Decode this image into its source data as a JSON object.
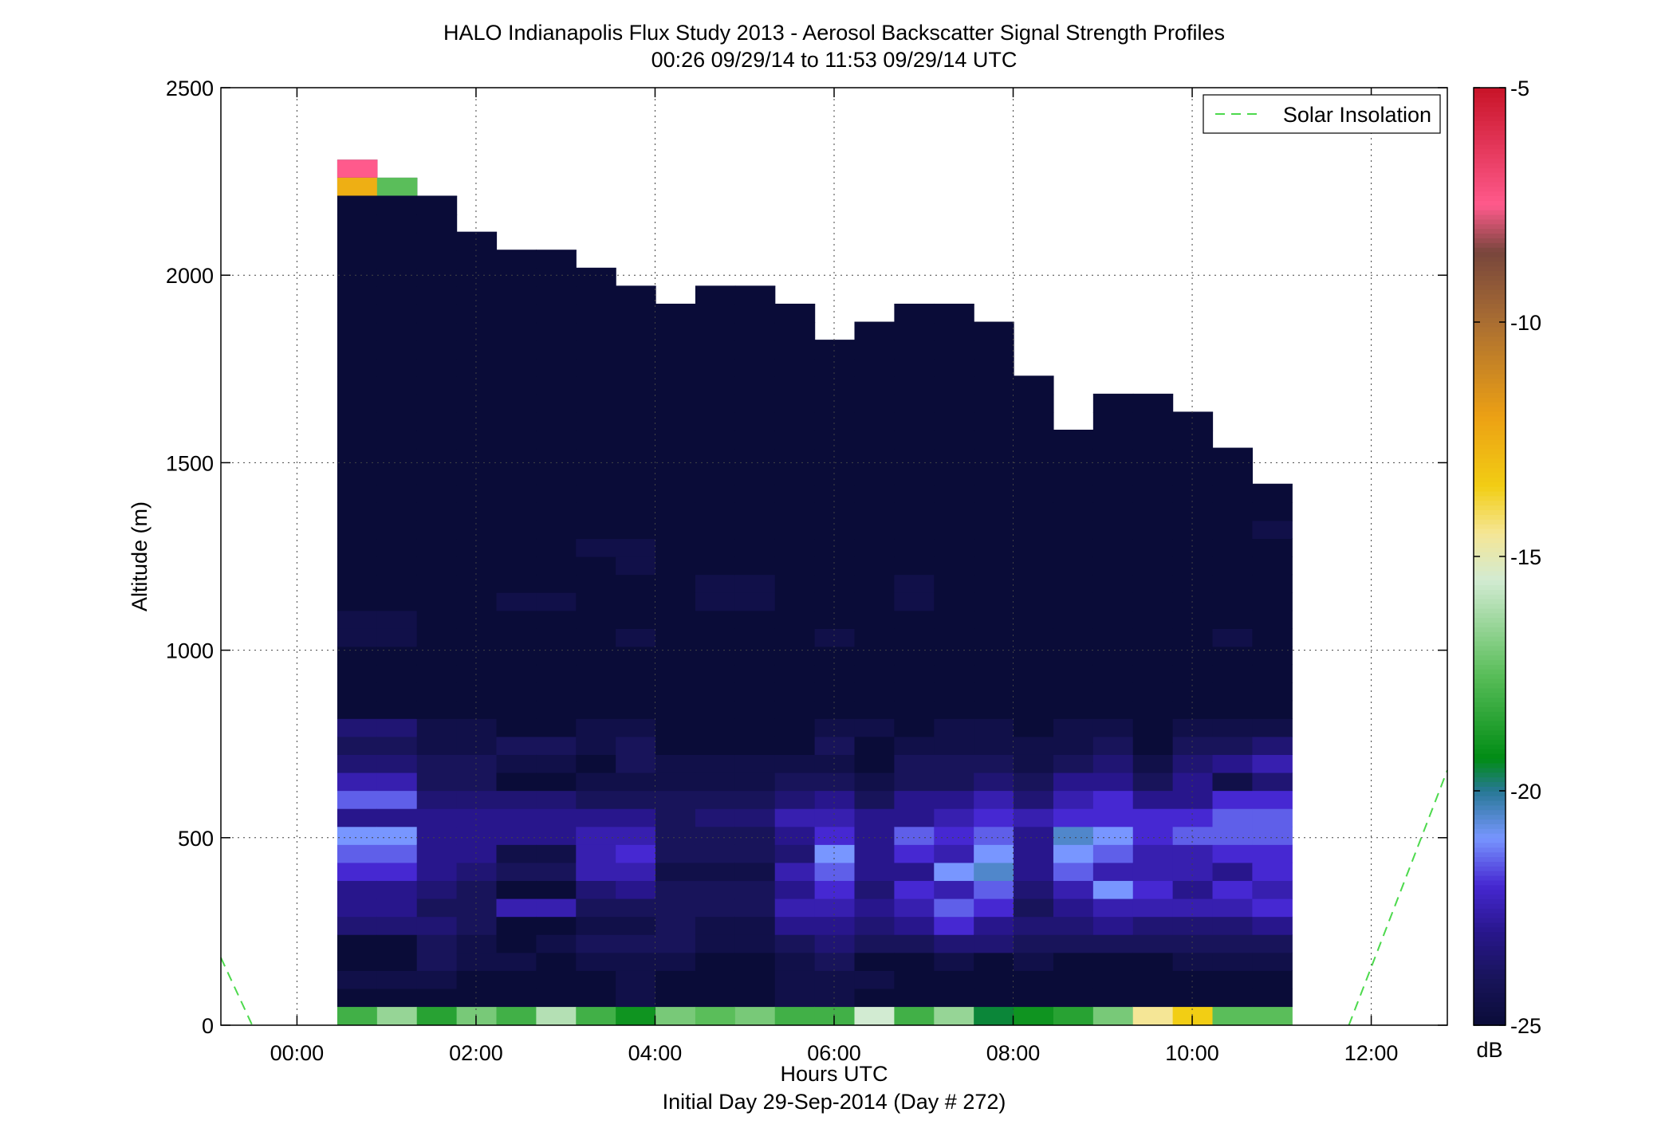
{
  "chart_data": {
    "type": "heatmap",
    "title": "HALO Indianapolis Flux Study 2013 - Aerosol Backscatter Signal Strength Profiles",
    "subtitle": "00:26 09/29/14 to 11:53 09/29/14  UTC",
    "xlabel": "Hours UTC",
    "xlabel2": "Initial Day 29-Sep-2014 (Day # 272)",
    "ylabel": "Altitude (m)",
    "xlim": [
      -0.85,
      12.85
    ],
    "ylim": [
      0,
      2500
    ],
    "x_ticks": [
      0,
      2,
      4,
      6,
      8,
      10,
      12
    ],
    "x_tick_labels": [
      "00:00",
      "02:00",
      "04:00",
      "06:00",
      "08:00",
      "10:00",
      "12:00"
    ],
    "y_ticks": [
      0,
      500,
      1000,
      1500,
      2000,
      2500
    ],
    "y_tick_labels": [
      "0",
      "500",
      "1000",
      "1500",
      "2000",
      "2500"
    ],
    "grid": true,
    "legend": {
      "position": "top-right",
      "entries": [
        "Solar Insolation"
      ]
    },
    "colorbar": {
      "unit": "dB",
      "range": [
        -25,
        -5
      ],
      "ticks": [
        -5,
        -10,
        -15,
        -20,
        -25
      ],
      "tick_labels": [
        "-5",
        "-10",
        "-15",
        "-20",
        "-25"
      ]
    },
    "heatmap": {
      "x_start": 0.45,
      "x_step": 0.4444,
      "y_start": 50,
      "y_step": 48,
      "column_tops": [
        2308,
        2260,
        2212,
        2116,
        2068,
        2068,
        2020,
        1972,
        1924,
        1972,
        1972,
        1924,
        1828,
        1876,
        1924,
        1924,
        1876,
        1732,
        1588,
        1684,
        1684,
        1636,
        1540,
        1444
      ],
      "surface_row_db": [
        -18.0,
        -16.5,
        -18.5,
        -17.0,
        -18.0,
        -16.0,
        -18.0,
        -19.0,
        -17.0,
        -17.5,
        -17.0,
        -18.0,
        -18.0,
        -15.5,
        -18.0,
        -16.5,
        -19.5,
        -19.0,
        -18.5,
        -17.0,
        -14.5,
        -13.5,
        -17.5,
        -17.5
      ],
      "upper_cells": [
        {
          "col": 0,
          "top": 2308,
          "height": 48,
          "db": -7.5
        },
        {
          "col": 0,
          "top": 2260,
          "height": 48,
          "db": -12.5
        },
        {
          "col": 1,
          "top": 2260,
          "height": 48,
          "db": -17.5
        }
      ],
      "profiles": [
        [
          -25,
          -24.5,
          -25,
          -25,
          -23.5,
          -23,
          -23,
          -22,
          -21.5,
          -21,
          -23,
          -21.5,
          -22.5,
          -23.5,
          -24,
          -23.5,
          -25,
          -25,
          -25,
          -25,
          -24.5,
          -24.5,
          -25,
          -25,
          -25,
          -25,
          -25,
          -25,
          -25,
          -25,
          -25,
          -25,
          -25,
          -25,
          -25,
          -25,
          -25,
          -25,
          -25,
          -25,
          -25,
          -25,
          -25
        ],
        [
          -25,
          -24.5,
          -25,
          -25,
          -23.5,
          -23,
          -23,
          -22,
          -21.5,
          -21,
          -23,
          -21.5,
          -22.5,
          -23.5,
          -24,
          -23.5,
          -25,
          -25,
          -25,
          -25,
          -24.5,
          -24.5,
          -25,
          -25,
          -25,
          -25,
          -25,
          -25,
          -25,
          -25,
          -25,
          -25,
          -25,
          -25,
          -25,
          -25,
          -25,
          -25,
          -25,
          -25,
          -25,
          -25,
          -25
        ],
        [
          -25,
          -24.5,
          -24,
          -24,
          -23.5,
          -24,
          -23.5,
          -23,
          -23,
          -23,
          -23,
          -23.5,
          -24,
          -24,
          -24.5,
          -24.5,
          -25,
          -25,
          -25,
          -25,
          -25,
          -25,
          -25,
          -25,
          -25,
          -25,
          -25,
          -25,
          -25,
          -25,
          -25,
          -25,
          -25,
          -25,
          -25,
          -25,
          -25,
          -25,
          -25,
          -25,
          -25,
          -25
        ],
        [
          -25,
          -25,
          -24.5,
          -24.5,
          -24,
          -24,
          -24,
          -23.5,
          -23,
          -23,
          -23,
          -23.5,
          -24,
          -24,
          -24.5,
          -24.5,
          -25,
          -25,
          -25,
          -25,
          -25,
          -25,
          -25,
          -25,
          -25,
          -25,
          -25,
          -25,
          -25,
          -25,
          -25,
          -25,
          -25,
          -25,
          -25,
          -25,
          -25,
          -25,
          -25,
          -25
        ],
        [
          -25,
          -25,
          -24.5,
          -25,
          -25,
          -22.5,
          -25,
          -24,
          -24.5,
          -23,
          -23,
          -23.5,
          -25,
          -24.5,
          -24,
          -25,
          -25,
          -25,
          -25,
          -25,
          -25,
          -25,
          -24.5,
          -25,
          -25,
          -25,
          -25,
          -25,
          -25,
          -25,
          -25,
          -25,
          -25,
          -25,
          -25,
          -25,
          -25,
          -25,
          -25,
          -25,
          -25
        ],
        [
          -25,
          -25,
          -25,
          -24.5,
          -25,
          -22.5,
          -25,
          -24,
          -24.5,
          -23,
          -23,
          -23.5,
          -25,
          -24.5,
          -24,
          -25,
          -25,
          -25,
          -25,
          -25,
          -25,
          -25,
          -24.5,
          -25,
          -25,
          -25,
          -25,
          -25,
          -25,
          -25,
          -25,
          -25,
          -25,
          -25,
          -25,
          -25,
          -25,
          -25,
          -25,
          -25,
          -25
        ],
        [
          -25,
          -25,
          -24.5,
          -24,
          -24.5,
          -24,
          -23.5,
          -22.5,
          -22.5,
          -22.5,
          -23,
          -24,
          -24.5,
          -25,
          -24.5,
          -24.5,
          -25,
          -25,
          -25,
          -25,
          -25,
          -25,
          -25,
          -25,
          -25,
          -24.5,
          -25,
          -25,
          -25,
          -25,
          -25,
          -25,
          -25,
          -25,
          -25,
          -25,
          -25,
          -25,
          -25,
          -25
        ],
        [
          -24.5,
          -24.5,
          -24.5,
          -24,
          -24.5,
          -24,
          -23,
          -22.5,
          -22,
          -22.5,
          -23,
          -24,
          -24.5,
          -24,
          -24,
          -24.5,
          -25,
          -25,
          -25,
          -25,
          -24.5,
          -25,
          -25,
          -25,
          -24.5,
          -24.5,
          -25,
          -25,
          -25,
          -25,
          -25,
          -25,
          -25,
          -25,
          -25,
          -25,
          -25,
          -25,
          -25
        ],
        [
          -25,
          -25,
          -24.5,
          -24,
          -24,
          -24,
          -24,
          -24.5,
          -24,
          -24,
          -24,
          -24,
          -24.5,
          -24.5,
          -25,
          -25,
          -25,
          -25,
          -25,
          -25,
          -25,
          -25,
          -25,
          -25,
          -25,
          -25,
          -25,
          -25,
          -25,
          -25,
          -25,
          -25,
          -25,
          -25,
          -25,
          -25,
          -25,
          -25,
          -25,
          -25
        ],
        [
          -25,
          -25,
          -25,
          -24.5,
          -24.5,
          -24,
          -24,
          -24.5,
          -24,
          -24,
          -23.5,
          -24,
          -24.5,
          -24.5,
          -25,
          -25,
          -25,
          -25,
          -25,
          -25,
          -25,
          -25,
          -24.5,
          -24.5,
          -25,
          -25,
          -25,
          -25,
          -25,
          -25,
          -25,
          -25,
          -25,
          -25,
          -25,
          -25,
          -25,
          -25,
          -25,
          -25
        ],
        [
          -25,
          -25,
          -25,
          -24.5,
          -24.5,
          -24,
          -24,
          -24.5,
          -24,
          -24,
          -23.5,
          -24,
          -24.5,
          -24.5,
          -25,
          -25,
          -25,
          -25,
          -25,
          -25,
          -25,
          -25,
          -24.5,
          -24.5,
          -25,
          -25,
          -25,
          -25,
          -25,
          -25,
          -25,
          -25,
          -25,
          -25,
          -25,
          -25,
          -25,
          -25,
          -25,
          -25
        ],
        [
          -24.5,
          -24.5,
          -24.5,
          -24,
          -23,
          -22.5,
          -23,
          -22.5,
          -23.5,
          -23,
          -22.5,
          -23.5,
          -24,
          -24.5,
          -25,
          -25,
          -25,
          -25,
          -25,
          -25,
          -25,
          -25,
          -25,
          -25,
          -25,
          -25,
          -25,
          -25,
          -25,
          -25,
          -25,
          -25,
          -25,
          -25,
          -25,
          -25,
          -25,
          -25
        ],
        [
          -24.5,
          -24.5,
          -24,
          -23.5,
          -23,
          -22.5,
          -22,
          -21.5,
          -21,
          -22,
          -22.5,
          -23,
          -24,
          -24.5,
          -24,
          -24.5,
          -25,
          -25,
          -25,
          -25,
          -24.5,
          -25,
          -25,
          -25,
          -25,
          -25,
          -25,
          -25,
          -25,
          -25,
          -25,
          -25,
          -25,
          -25,
          -25,
          -25,
          -25
        ],
        [
          -25,
          -24.5,
          -25,
          -24,
          -23.5,
          -23,
          -23.5,
          -23,
          -23,
          -23,
          -23,
          -24,
          -24.5,
          -25,
          -25,
          -24.5,
          -25,
          -25,
          -25,
          -25,
          -25,
          -25,
          -25,
          -25,
          -25,
          -25,
          -25,
          -25,
          -25,
          -25,
          -25,
          -25,
          -25,
          -25,
          -25,
          -25,
          -25,
          -25
        ],
        [
          -25,
          -25,
          -25,
          -24,
          -23,
          -22.5,
          -22,
          -23,
          -22,
          -21.5,
          -23,
          -23,
          -24,
          -24,
          -24.5,
          -25,
          -25,
          -25,
          -25,
          -25,
          -25,
          -25,
          -24.5,
          -24.5,
          -25,
          -25,
          -25,
          -25,
          -25,
          -25,
          -25,
          -25,
          -25,
          -25,
          -25,
          -25,
          -25,
          -25,
          -25
        ],
        [
          -25,
          -25,
          -24.5,
          -23.5,
          -22,
          -21.5,
          -22.5,
          -21,
          -22.5,
          -22,
          -22.5,
          -23,
          -24,
          -24,
          -24.5,
          -24.5,
          -25,
          -25,
          -25,
          -25,
          -25,
          -25,
          -25,
          -25,
          -25,
          -25,
          -25,
          -25,
          -25,
          -25,
          -25,
          -25,
          -25,
          -25,
          -25,
          -25,
          -25,
          -25
        ],
        [
          -25,
          -25,
          -25,
          -23.5,
          -23,
          -22,
          -21.5,
          -20.5,
          -21,
          -21.5,
          -22,
          -22.5,
          -23.5,
          -24,
          -24.5,
          -24.5,
          -25,
          -25,
          -25,
          -25,
          -25,
          -25,
          -25,
          -25,
          -25,
          -25,
          -25,
          -25,
          -25,
          -25,
          -25,
          -25,
          -25,
          -25
        ],
        [
          -25,
          -25,
          -24.5,
          -24,
          -23.5,
          -24,
          -23.5,
          -23,
          -23,
          -23,
          -22.5,
          -23.5,
          -24,
          -24.5,
          -24.5,
          -25,
          -25,
          -25,
          -25,
          -25,
          -25,
          -25,
          -25,
          -25,
          -25,
          -25,
          -25,
          -25,
          -25,
          -25,
          -25
        ],
        [
          -25,
          -25,
          -25,
          -24,
          -23.5,
          -23,
          -22.5,
          -21.5,
          -21,
          -20.5,
          -22,
          -22.5,
          -23,
          -24,
          -24.5,
          -24.5,
          -25,
          -25,
          -25,
          -25,
          -25,
          -25,
          -25,
          -25,
          -25,
          -25,
          -25,
          -25,
          -25,
          -25
        ],
        [
          -25,
          -25,
          -25,
          -24,
          -23,
          -22.5,
          -21,
          -22.5,
          -21.5,
          -21,
          -22,
          -22,
          -23,
          -23.5,
          -24,
          -24.5,
          -25,
          -25,
          -25,
          -25,
          -25,
          -25,
          -25,
          -25,
          -25,
          -25,
          -25,
          -25,
          -25,
          -25,
          -25,
          -25
        ],
        [
          -25,
          -25,
          -25,
          -24,
          -23.5,
          -22.5,
          -22,
          -22.5,
          -22.5,
          -22,
          -22,
          -23,
          -24,
          -24.5,
          -25,
          -25,
          -25,
          -25,
          -25,
          -25,
          -25,
          -25,
          -25,
          -25,
          -25,
          -25,
          -25,
          -25,
          -25,
          -25,
          -25,
          -25
        ],
        [
          -25,
          -25,
          -24.5,
          -24,
          -23.5,
          -22.5,
          -23,
          -22.5,
          -22.5,
          -21.5,
          -22,
          -23,
          -23,
          -23.5,
          -24,
          -24.5,
          -25,
          -25,
          -25,
          -25,
          -25,
          -25,
          -25,
          -25,
          -25,
          -25,
          -25,
          -25,
          -25,
          -25
        ],
        [
          -25,
          -25,
          -24.5,
          -24,
          -23.5,
          -22.5,
          -22,
          -23,
          -22,
          -21.5,
          -21.5,
          -22,
          -24.5,
          -23,
          -24,
          -24.5,
          -25,
          -25,
          -25,
          -25,
          -24.5,
          -25,
          -25,
          -25,
          -25,
          -25,
          -25,
          -25
        ],
        [
          -25,
          -25,
          -24.5,
          -24,
          -23,
          -22,
          -22.5,
          -22,
          -22,
          -21.5,
          -21.5,
          -22,
          -23.5,
          -22.5,
          -23.5,
          -24.5,
          -25,
          -25,
          -25,
          -25,
          -25,
          -25,
          -25,
          -25,
          -25,
          -25,
          -24.5,
          -25
        ]
      ]
    },
    "solar_insolation": {
      "segments": [
        {
          "x": [
            -0.85,
            -0.5
          ],
          "y": [
            180,
            0
          ]
        },
        {
          "x": [
            11.75,
            12.85
          ],
          "y": [
            0,
            680
          ]
        }
      ]
    }
  }
}
